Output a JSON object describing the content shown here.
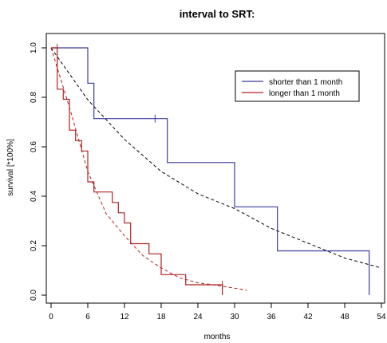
{
  "chart_data": {
    "type": "line",
    "title": "interval to SRT:",
    "xlabel": "months",
    "ylabel": "survival [*100%]",
    "xlim": [
      0,
      54
    ],
    "ylim": [
      0,
      1
    ],
    "xticks": [
      0,
      6,
      12,
      18,
      24,
      30,
      36,
      42,
      48,
      54
    ],
    "yticks": [
      0.0,
      0.2,
      0.4,
      0.6,
      0.8,
      1.0
    ],
    "ytick_labels": [
      "0.0",
      "0.2",
      "0.4",
      "0.6",
      "0.8",
      "1.0"
    ],
    "grid": false,
    "legend_position": "top-right",
    "series": [
      {
        "name": "shorter than 1 month",
        "color": "#3b3b9e",
        "style": "step",
        "points": [
          [
            0,
            1.0
          ],
          [
            6,
            1.0
          ],
          [
            6,
            0.857
          ],
          [
            7,
            0.857
          ],
          [
            7,
            0.714
          ],
          [
            19,
            0.714
          ],
          [
            19,
            0.536
          ],
          [
            30,
            0.536
          ],
          [
            30,
            0.357
          ],
          [
            37,
            0.357
          ],
          [
            37,
            0.179
          ],
          [
            52,
            0.179
          ],
          [
            52,
            0.0
          ]
        ],
        "censor_marks": [
          [
            17,
            0.714
          ]
        ]
      },
      {
        "name": "longer than 1 month",
        "color": "#b22222",
        "style": "step",
        "points": [
          [
            0,
            1.0
          ],
          [
            1,
            1.0
          ],
          [
            1,
            0.833
          ],
          [
            2,
            0.833
          ],
          [
            2,
            0.792
          ],
          [
            3,
            0.792
          ],
          [
            3,
            0.667
          ],
          [
            4,
            0.667
          ],
          [
            4,
            0.625
          ],
          [
            5,
            0.625
          ],
          [
            5,
            0.583
          ],
          [
            6,
            0.583
          ],
          [
            6,
            0.458
          ],
          [
            7,
            0.458
          ],
          [
            7,
            0.417
          ],
          [
            10,
            0.417
          ],
          [
            10,
            0.375
          ],
          [
            11,
            0.375
          ],
          [
            11,
            0.333
          ],
          [
            12,
            0.333
          ],
          [
            12,
            0.292
          ],
          [
            13,
            0.292
          ],
          [
            13,
            0.208
          ],
          [
            16,
            0.208
          ],
          [
            16,
            0.167
          ],
          [
            18,
            0.167
          ],
          [
            18,
            0.083
          ],
          [
            22,
            0.083
          ],
          [
            22,
            0.042
          ],
          [
            28,
            0.042
          ],
          [
            28,
            0.0
          ]
        ],
        "censor_marks": [
          [
            1,
            1.0
          ],
          [
            28,
            0.042
          ]
        ]
      }
    ],
    "fitted_curves": [
      {
        "series": "shorter than 1 month",
        "color": "#000000",
        "dash": "dashed",
        "x_range": [
          0,
          54
        ],
        "points": [
          [
            0,
            1.0
          ],
          [
            6,
            0.79
          ],
          [
            12,
            0.63
          ],
          [
            18,
            0.5
          ],
          [
            24,
            0.41
          ],
          [
            30,
            0.35
          ],
          [
            36,
            0.27
          ],
          [
            42,
            0.21
          ],
          [
            48,
            0.15
          ],
          [
            54,
            0.11
          ]
        ]
      },
      {
        "series": "longer than 1 month",
        "color": "#b22222",
        "dash": "dashed",
        "x_range": [
          0,
          32
        ],
        "points": [
          [
            0,
            1.0
          ],
          [
            3,
            0.76
          ],
          [
            6,
            0.5
          ],
          [
            9,
            0.33
          ],
          [
            12,
            0.24
          ],
          [
            15,
            0.16
          ],
          [
            18,
            0.11
          ],
          [
            21,
            0.07
          ],
          [
            24,
            0.05
          ],
          [
            27,
            0.04
          ],
          [
            32,
            0.02
          ]
        ]
      }
    ]
  }
}
